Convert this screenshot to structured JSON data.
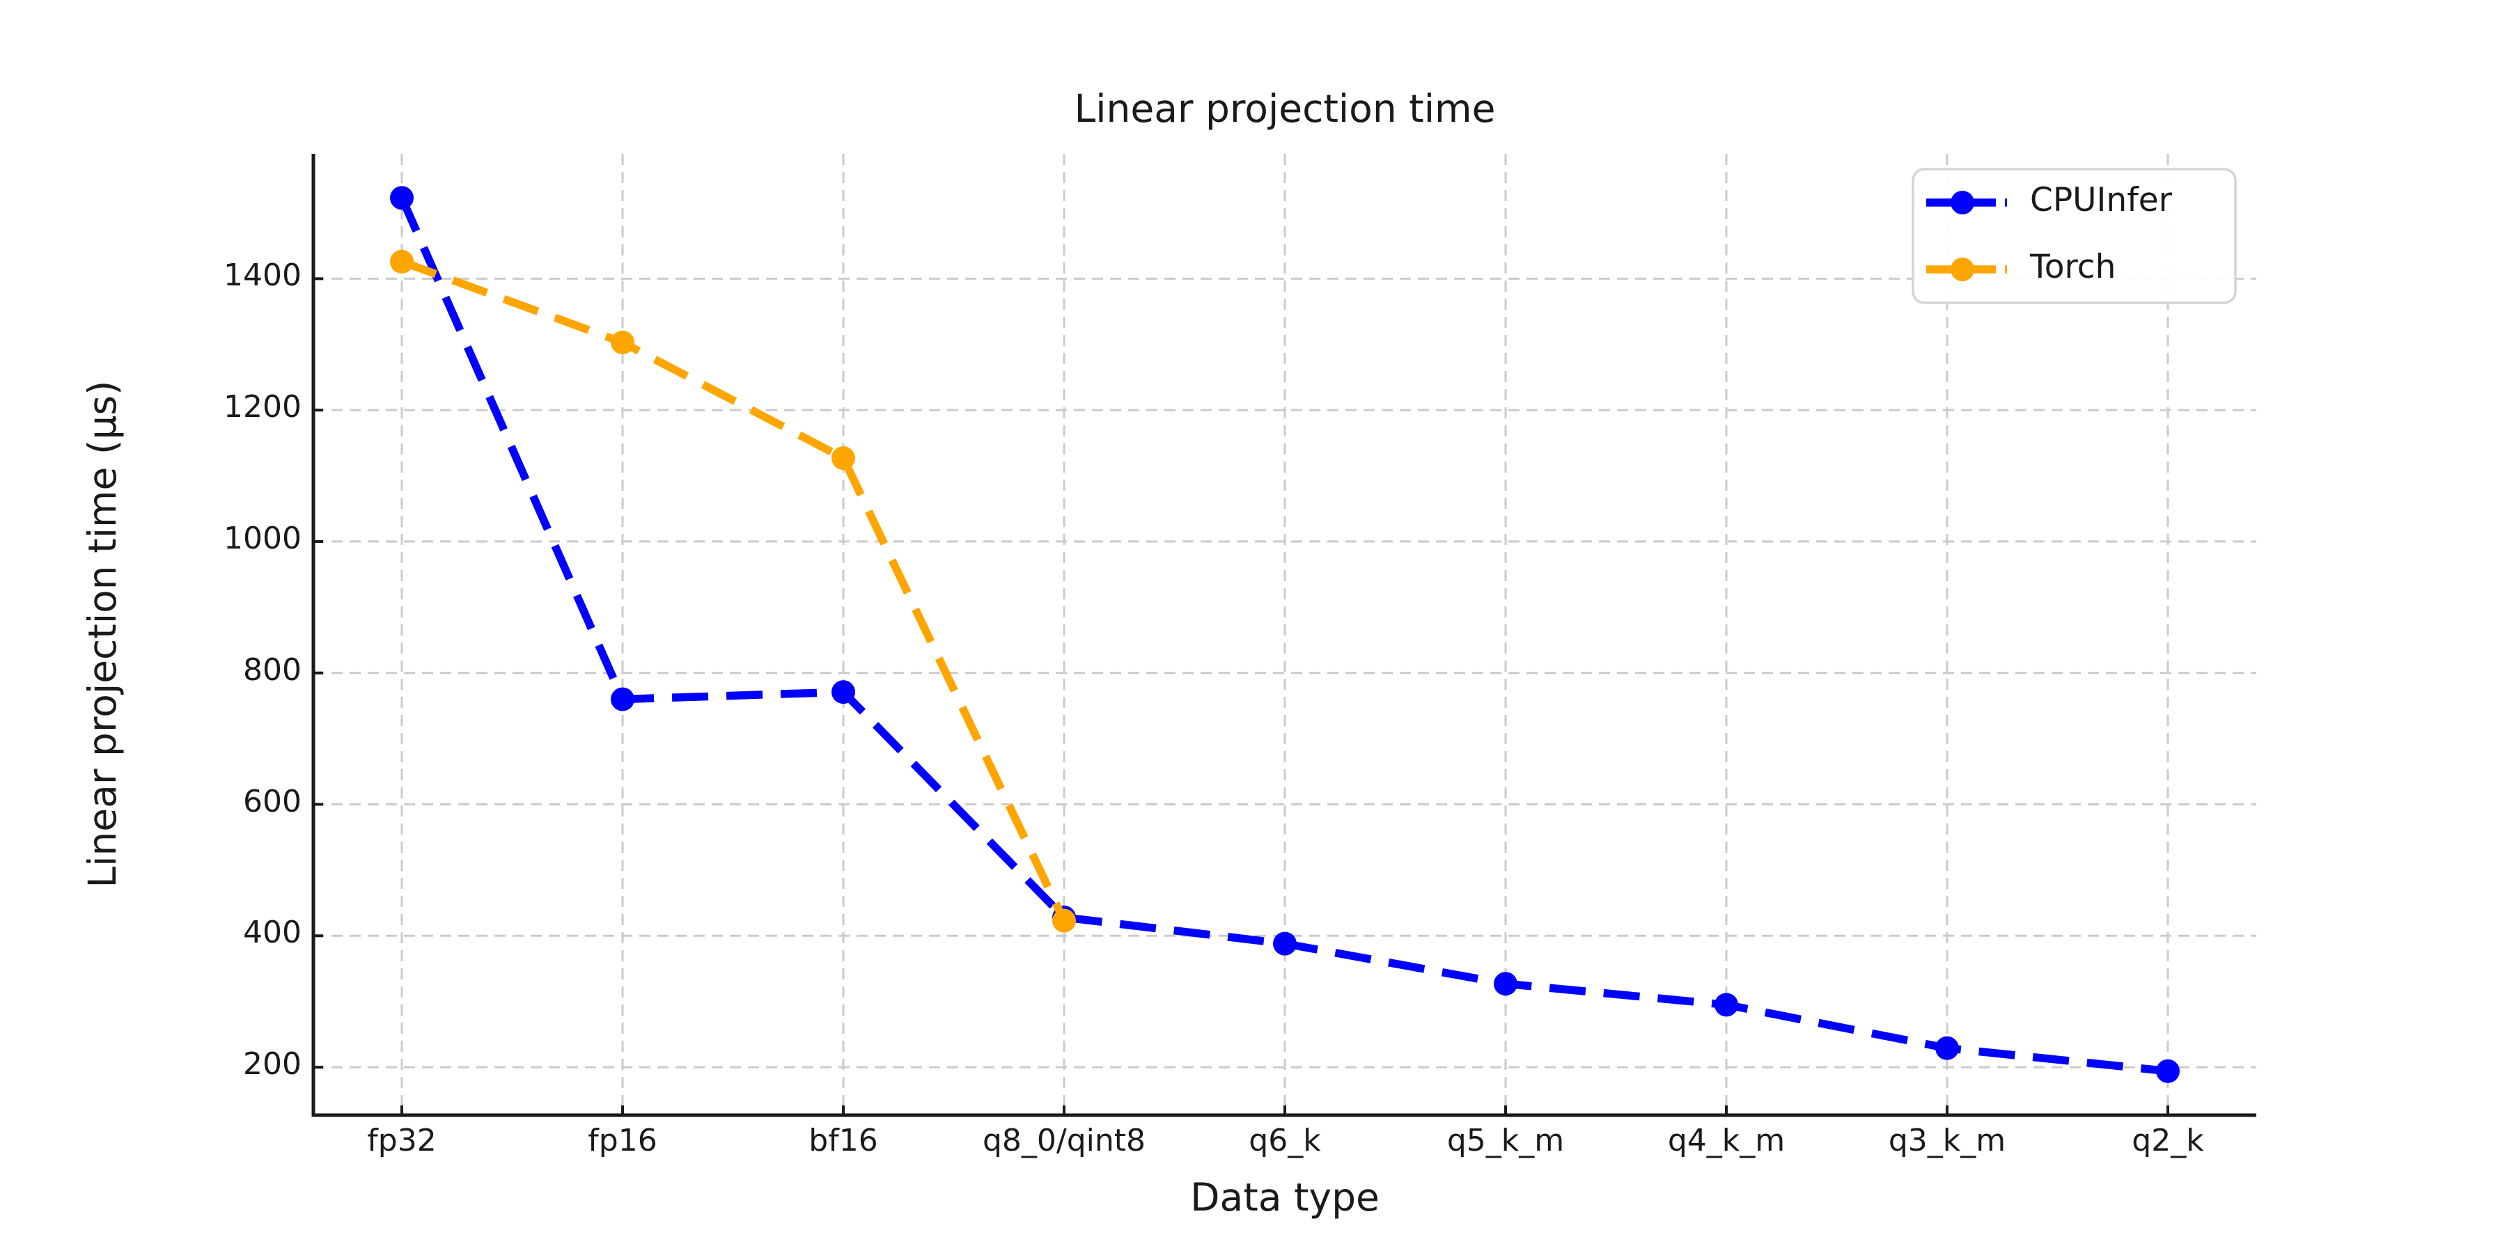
{
  "figure": {
    "title": "Linear projection time",
    "x_axis_label": "Data type",
    "y_axis_label": "Linear projection time (µs)"
  },
  "legend": {
    "position": "upper right",
    "items": [
      {
        "label": "CPUInfer",
        "color": "#0000ff"
      },
      {
        "label": "Torch",
        "color": "#ffa500"
      }
    ]
  },
  "colors": {
    "cpuinfer_blue": "#0000ff",
    "torch_orange": "#ffa500",
    "gridline": "#cbcbcb",
    "spine": "#1a1a1a",
    "text": "#1a1a1a",
    "legend_border": "#d4d4d4",
    "background": "#ffffff"
  },
  "chart_data": {
    "type": "line",
    "title": "Linear projection time",
    "xlabel": "Data type",
    "ylabel": "Linear projection time (µs)",
    "categories": [
      "fp32",
      "fp16",
      "bf16",
      "q8_0/qint8",
      "q6_k",
      "q5_k_m",
      "q4_k_m",
      "q3_k_m",
      "q2_k"
    ],
    "series": [
      {
        "name": "CPUInfer",
        "color": "#0000ff",
        "linestyle": "dashed",
        "marker": "circle",
        "values": [
          1523,
          760,
          771,
          428,
          388,
          327,
          295,
          229,
          194
        ]
      },
      {
        "name": "Torch",
        "color": "#ffa500",
        "linestyle": "dashed",
        "marker": "circle",
        "values": [
          1426,
          1303,
          1127,
          423,
          null,
          null,
          null,
          null,
          null
        ]
      }
    ],
    "yticks": [
      200,
      400,
      600,
      800,
      1000,
      1200,
      1400
    ],
    "ylim": [
      127,
      1590
    ],
    "grid": true,
    "grid_style": "dashed",
    "legend_position": "upper right"
  }
}
